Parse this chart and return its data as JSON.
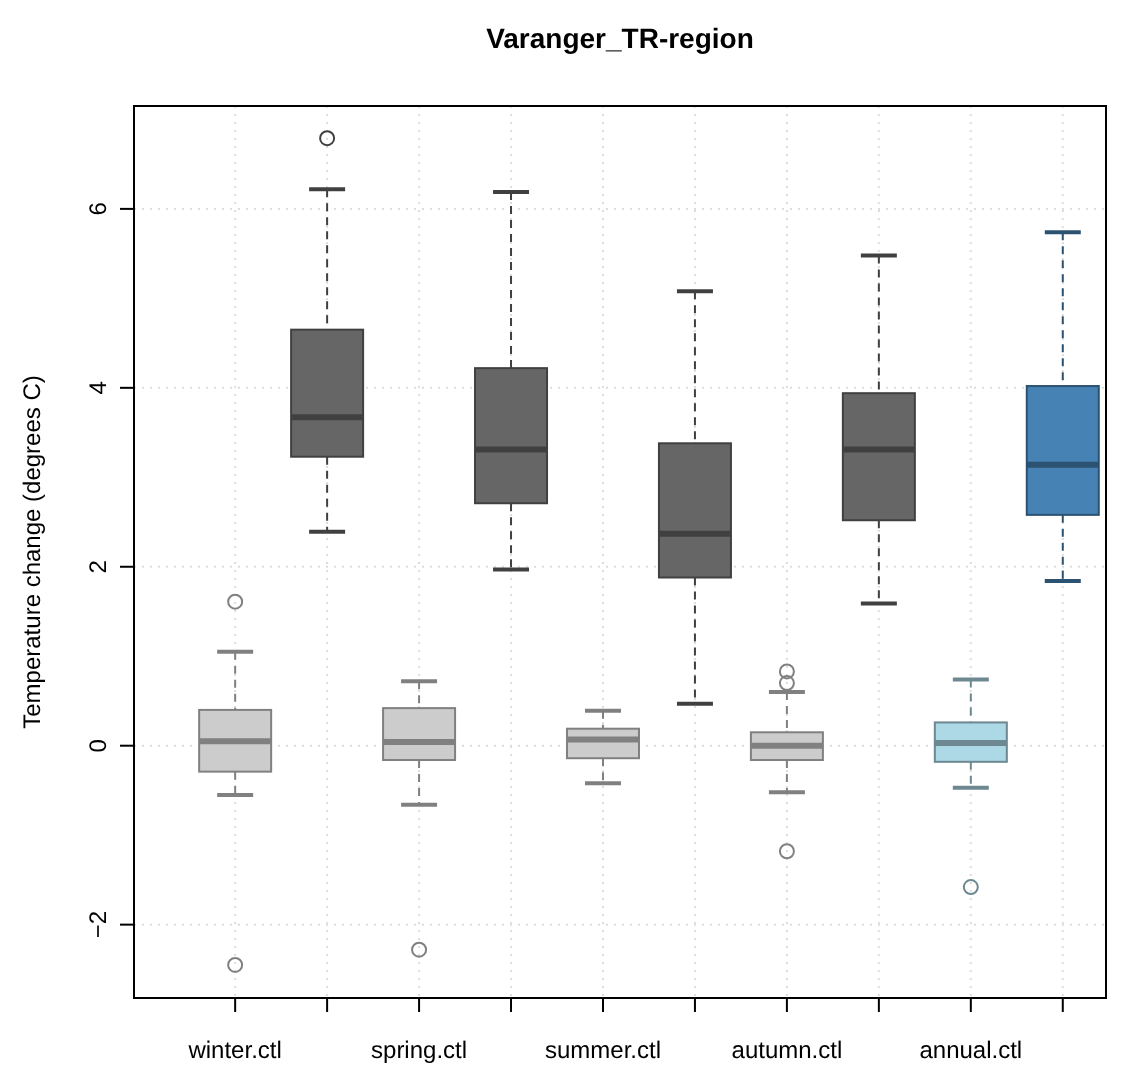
{
  "chart_data": {
    "type": "box",
    "title": "Varanger_TR-region",
    "ylabel": "Temperature change (degrees C)",
    "categories": [
      "winter.ctl",
      null,
      "spring.ctl",
      null,
      "summer.ctl",
      null,
      "autumn.ctl",
      null,
      "annual.ctl",
      null
    ],
    "colors": [
      "#cccccc",
      "#666666",
      "#cccccc",
      "#666666",
      "#cccccc",
      "#666666",
      "#cccccc",
      "#666666",
      "#add8e6",
      "#4682b4"
    ],
    "boxes": [
      {
        "low": -0.55,
        "q1": -0.29,
        "median": 0.05,
        "q3": 0.4,
        "high": 1.05,
        "outliers": [
          1.61,
          -2.45
        ]
      },
      {
        "low": 2.39,
        "q1": 3.23,
        "median": 3.67,
        "q3": 4.65,
        "high": 6.22,
        "outliers": [
          6.79
        ]
      },
      {
        "low": -0.66,
        "q1": -0.16,
        "median": 0.04,
        "q3": 0.42,
        "high": 0.72,
        "outliers": [
          -2.28
        ]
      },
      {
        "low": 1.97,
        "q1": 2.71,
        "median": 3.31,
        "q3": 4.22,
        "high": 6.19
      },
      {
        "low": -0.42,
        "q1": -0.14,
        "median": 0.07,
        "q3": 0.19,
        "high": 0.39
      },
      {
        "low": 0.47,
        "q1": 1.88,
        "median": 2.37,
        "q3": 3.38,
        "high": 5.08
      },
      {
        "low": -0.52,
        "q1": -0.16,
        "median": 0.0,
        "q3": 0.15,
        "high": 0.6,
        "outliers": [
          0.83,
          0.7,
          -1.18
        ]
      },
      {
        "low": 1.59,
        "q1": 2.52,
        "median": 3.31,
        "q3": 3.94,
        "high": 5.48
      },
      {
        "low": -0.47,
        "q1": -0.18,
        "median": 0.03,
        "q3": 0.26,
        "high": 0.74,
        "outliers": [
          -1.58
        ]
      },
      {
        "low": 1.84,
        "q1": 2.58,
        "median": 3.14,
        "q3": 4.02,
        "high": 5.74
      }
    ],
    "ylim": [
      -2.82,
      7.15
    ],
    "yticks": [
      {
        "value": -2,
        "label": "−2"
      },
      0,
      2,
      4,
      6
    ],
    "grid": true
  }
}
